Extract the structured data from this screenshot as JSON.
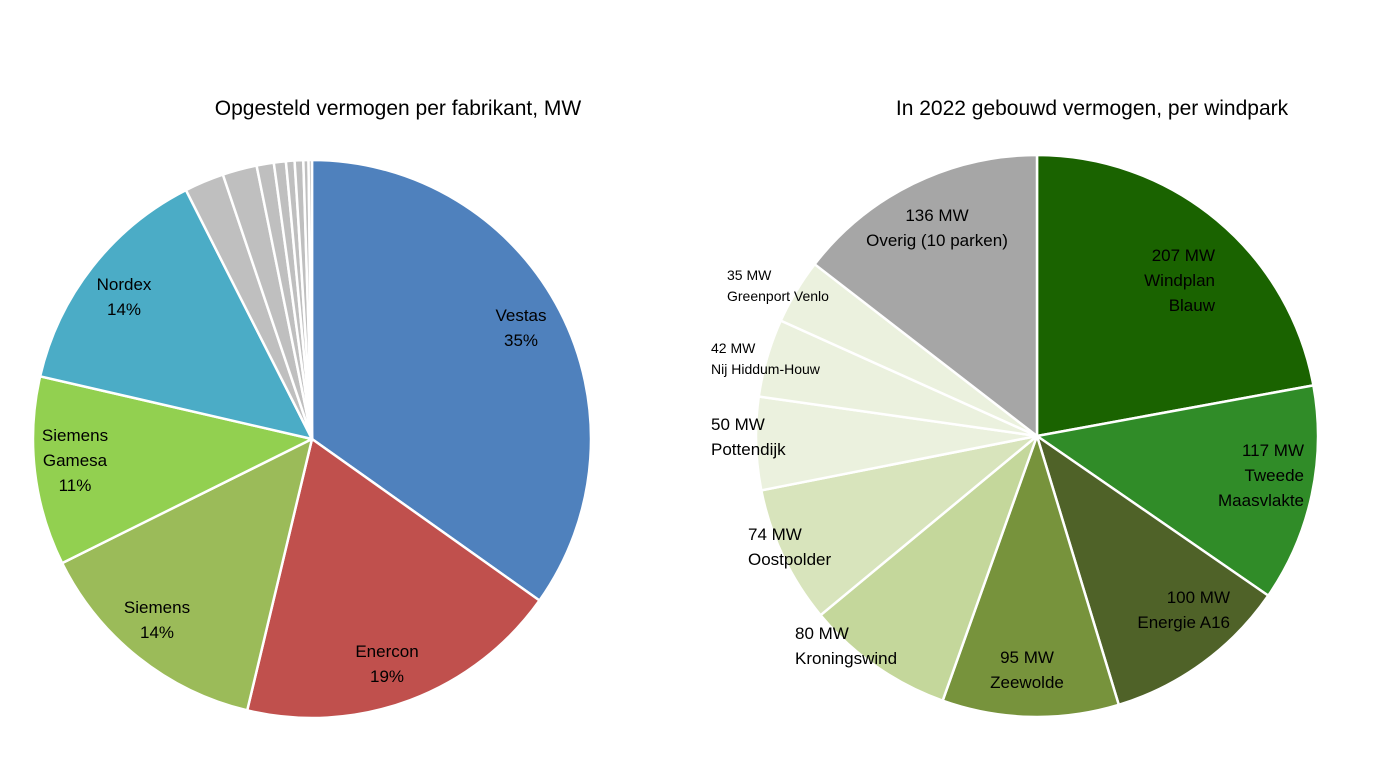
{
  "chart_data": [
    {
      "type": "pie",
      "title": "Opgesteld vermogen per fabrikant, MW",
      "slices": [
        {
          "label": [
            "Vestas",
            "35%"
          ],
          "value": 35.0,
          "color": "#4f81bd"
        },
        {
          "label": [
            "Enercon",
            "19%"
          ],
          "value": 19.0,
          "color": "#c0504d"
        },
        {
          "label": [
            "Siemens",
            "14%"
          ],
          "value": 14.0,
          "color": "#9bbb59"
        },
        {
          "label": [
            "Siemens",
            "Gamesa",
            "11%"
          ],
          "value": 11.0,
          "color": "#92d050"
        },
        {
          "label": [
            "Nordex",
            "14%"
          ],
          "value": 14.0,
          "color": "#4bacc6"
        },
        {
          "label": [],
          "value": 2.3,
          "color": "#bfbfbf"
        },
        {
          "label": [],
          "value": 2.0,
          "color": "#bfbfbf"
        },
        {
          "label": [],
          "value": 1.0,
          "color": "#bfbfbf"
        },
        {
          "label": [],
          "value": 0.7,
          "color": "#bfbfbf"
        },
        {
          "label": [],
          "value": 0.5,
          "color": "#bfbfbf"
        },
        {
          "label": [],
          "value": 0.5,
          "color": "#bfbfbf"
        },
        {
          "label": [],
          "value": 0.3,
          "color": "#bfbfbf"
        },
        {
          "label": [],
          "value": 0.2,
          "color": "#bfbfbf"
        }
      ]
    },
    {
      "type": "pie",
      "title": "In 2022 gebouwd vermogen, per windpark",
      "unit": "MW",
      "slices": [
        {
          "label": [
            "207 MW",
            "Windplan",
            "Blauw"
          ],
          "value": 207,
          "color": "#1a6300"
        },
        {
          "label": [
            "117 MW",
            "Tweede",
            "Maasvlakte"
          ],
          "value": 117,
          "color": "#308c28"
        },
        {
          "label": [
            "100 MW",
            "Energie A16"
          ],
          "value": 100,
          "color": "#4f6228"
        },
        {
          "label": [
            "95 MW",
            "Zeewolde"
          ],
          "value": 95,
          "color": "#77933c"
        },
        {
          "label": [
            "80 MW",
            "Kroningswind"
          ],
          "value": 80,
          "color": "#c4d79b"
        },
        {
          "label": [
            "74 MW",
            "Oostpolder"
          ],
          "value": 74,
          "color": "#d8e4bc"
        },
        {
          "label": [
            "50 MW",
            "Pottendijk"
          ],
          "value": 50,
          "color": "#ebf1de"
        },
        {
          "label": [
            "42 MW",
            "Nij Hiddum-Houw"
          ],
          "value": 42,
          "color": "#ebf1de"
        },
        {
          "label": [
            "35 MW",
            "Greenport Venlo"
          ],
          "value": 35,
          "color": "#ebf1de"
        },
        {
          "label": [
            "136 MW",
            "Overig (10 parken)"
          ],
          "value": 136,
          "color": "#a6a6a6"
        }
      ]
    }
  ]
}
